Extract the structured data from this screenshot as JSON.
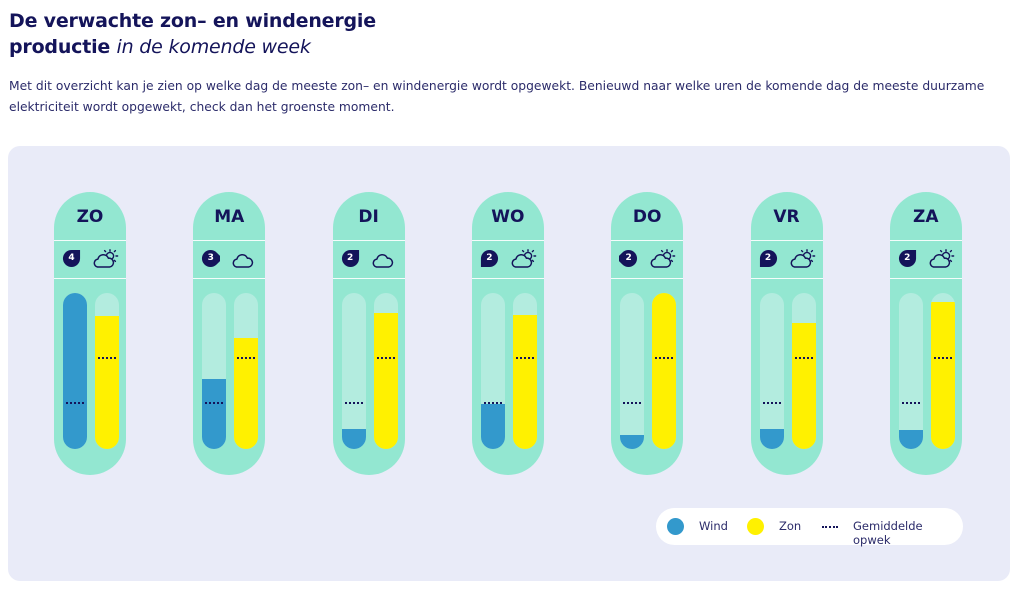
{
  "header": {
    "title_line1": "De verwachte zon– en windenergie",
    "title_bold": "productie",
    "title_italic": "in de komende week",
    "intro": "Met dit overzicht kan je zien op welke dag de meeste zon– en windenergie wordt opgewekt. Benieuwd naar welke uren de komende dag de meeste duurzame elektriciteit wordt opgewekt, check dan het groenste moment."
  },
  "colors": {
    "wind": "#3399cc",
    "sun": "#fff100",
    "pill": "#93e7d1",
    "track": "#b3ecdf",
    "navy": "#14145a"
  },
  "legend": {
    "wind": "Wind",
    "sun": "Zon",
    "average": "Gemiddelde opwek"
  },
  "chart_data": {
    "type": "bar",
    "categories": [
      "ZO",
      "MA",
      "DI",
      "WO",
      "DO",
      "VR",
      "ZA"
    ],
    "ylim": [
      0,
      100
    ],
    "series": [
      {
        "name": "Wind",
        "values": [
          100,
          45,
          13,
          29,
          9,
          13,
          12
        ],
        "average": 29
      },
      {
        "name": "Zon",
        "values": [
          85,
          71,
          87,
          86,
          100,
          81,
          94
        ],
        "average": 58
      }
    ],
    "wind_force": [
      "4",
      "3",
      "2",
      "2",
      "2",
      "2",
      "2"
    ],
    "weather_icons": [
      "sun-cloud-icon",
      "cloud-icon",
      "cloud-icon",
      "sun-cloud-icon",
      "sun-cloud-icon",
      "sun-cloud-icon",
      "sun-cloud-icon"
    ],
    "wind_direction_rotation_deg": [
      0,
      45,
      0,
      180,
      225,
      180,
      0
    ]
  }
}
